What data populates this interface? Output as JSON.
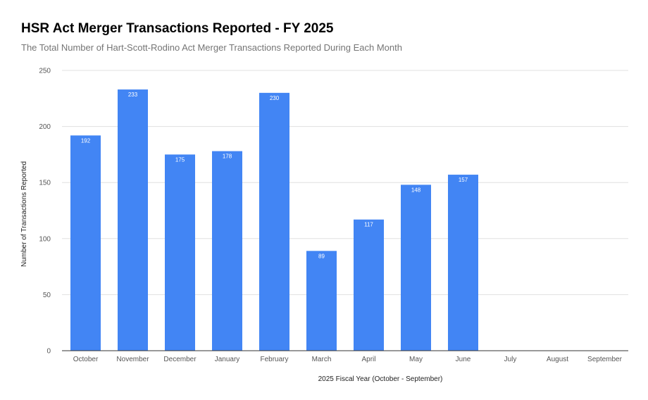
{
  "chart_data": {
    "type": "bar",
    "title": "HSR Act Merger Transactions Reported - FY 2025",
    "subtitle": "The Total Number of Hart-Scott-Rodino Act Merger Transactions Reported During Each Month",
    "xlabel": "2025 Fiscal Year (October - September)",
    "ylabel": "Number of Transactions Reported",
    "categories": [
      "October",
      "November",
      "December",
      "January",
      "February",
      "March",
      "April",
      "May",
      "June",
      "July",
      "August",
      "September"
    ],
    "values": [
      192,
      233,
      175,
      178,
      230,
      89,
      117,
      148,
      157,
      null,
      null,
      null
    ],
    "ylim": [
      0,
      250
    ],
    "yticks": [
      0,
      50,
      100,
      150,
      200,
      250
    ],
    "grid": true,
    "bar_color": "#4285f4",
    "legend": "none"
  }
}
